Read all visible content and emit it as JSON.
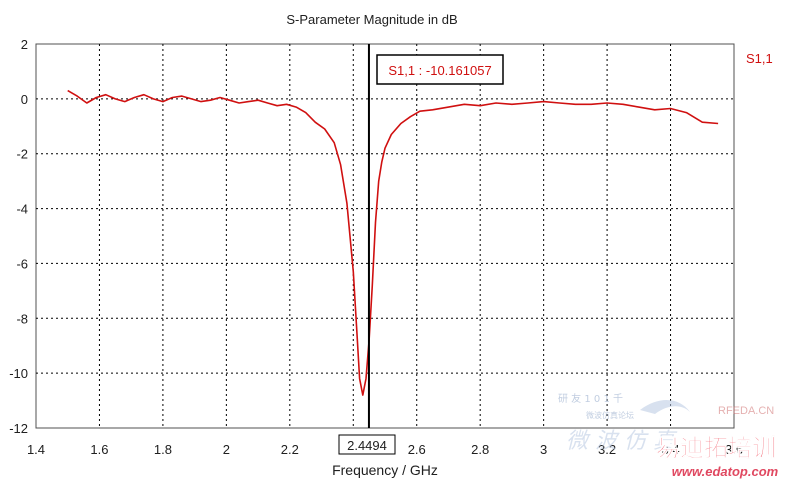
{
  "chart_data": {
    "type": "line",
    "title": "S-Parameter Magnitude in dB",
    "xlabel": "Frequency / GHz",
    "ylabel": "",
    "xlim": [
      1.4,
      3.6
    ],
    "ylim": [
      -12,
      2
    ],
    "x_ticks": [
      "1.4",
      "1.6",
      "1.8",
      "2",
      "2.2",
      "2.4",
      "2.6",
      "2.8",
      "3",
      "3.2",
      "3.4",
      "3.6"
    ],
    "y_ticks": [
      "2",
      "0",
      "-2",
      "-4",
      "-6",
      "-8",
      "-10",
      "-12"
    ],
    "grid": true,
    "legend": "right",
    "series": [
      {
        "name": "S1,1",
        "color": "#d01010",
        "x": [
          1.5,
          1.53,
          1.56,
          1.59,
          1.62,
          1.65,
          1.68,
          1.71,
          1.74,
          1.77,
          1.8,
          1.83,
          1.86,
          1.89,
          1.92,
          1.95,
          1.98,
          2.01,
          2.04,
          2.07,
          2.1,
          2.13,
          2.16,
          2.19,
          2.22,
          2.25,
          2.28,
          2.31,
          2.34,
          2.36,
          2.38,
          2.4,
          2.41,
          2.42,
          2.43,
          2.44,
          2.45,
          2.46,
          2.47,
          2.48,
          2.49,
          2.5,
          2.52,
          2.55,
          2.58,
          2.61,
          2.65,
          2.7,
          2.75,
          2.8,
          2.85,
          2.9,
          2.95,
          3.0,
          3.05,
          3.1,
          3.15,
          3.2,
          3.25,
          3.3,
          3.35,
          3.4,
          3.45,
          3.5,
          3.55
        ],
        "y": [
          0.3,
          0.1,
          -0.15,
          0.05,
          0.15,
          0.0,
          -0.1,
          0.05,
          0.15,
          0.0,
          -0.1,
          0.05,
          0.1,
          0.0,
          -0.1,
          -0.05,
          0.05,
          -0.05,
          -0.15,
          -0.1,
          -0.05,
          -0.15,
          -0.25,
          -0.2,
          -0.3,
          -0.5,
          -0.85,
          -1.1,
          -1.6,
          -2.4,
          -3.8,
          -6.3,
          -8.2,
          -10.2,
          -10.8,
          -10.2,
          -8.8,
          -6.8,
          -4.5,
          -3.0,
          -2.3,
          -1.8,
          -1.3,
          -0.9,
          -0.65,
          -0.45,
          -0.4,
          -0.3,
          -0.2,
          -0.25,
          -0.15,
          -0.2,
          -0.15,
          -0.1,
          -0.15,
          -0.2,
          -0.2,
          -0.15,
          -0.2,
          -0.3,
          -0.4,
          -0.35,
          -0.5,
          -0.85,
          -0.9
        ]
      }
    ],
    "marker": {
      "x": 2.4494,
      "x_label": "2.4494",
      "label": "S1,1 : -10.161057"
    },
    "watermark": {
      "cn_small": "研 友 1 0 1 千",
      "cn_sub": "微波仿真论坛",
      "site_tag": "RFEDA.CN",
      "cn_big": "微 波 仿 真",
      "brand": "易迪拓培训",
      "url": "www.edatop.com"
    }
  }
}
